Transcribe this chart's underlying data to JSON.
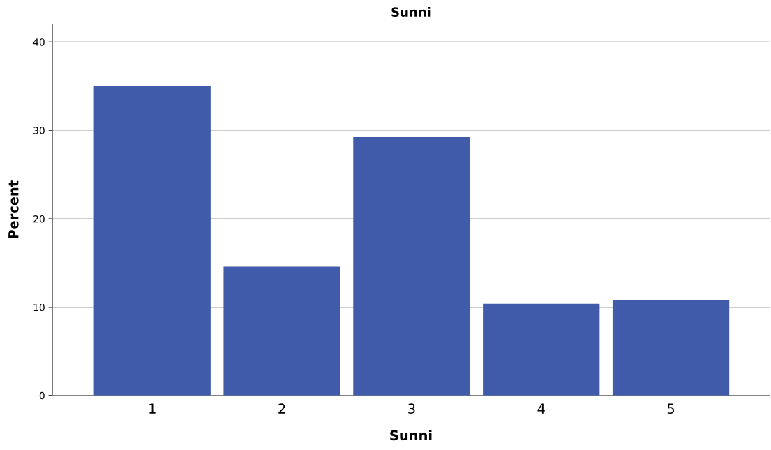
{
  "chart_data": {
    "type": "bar",
    "title": "Sunni",
    "xlabel": "Sunni",
    "ylabel": "Percent",
    "categories": [
      "1",
      "2",
      "3",
      "4",
      "5"
    ],
    "values": [
      35.0,
      14.6,
      29.3,
      10.4,
      10.8
    ],
    "color": "#3f5ba9",
    "ylim": [
      0,
      42
    ],
    "yticks": [
      0,
      10,
      20,
      30,
      40
    ],
    "grid": "y"
  }
}
